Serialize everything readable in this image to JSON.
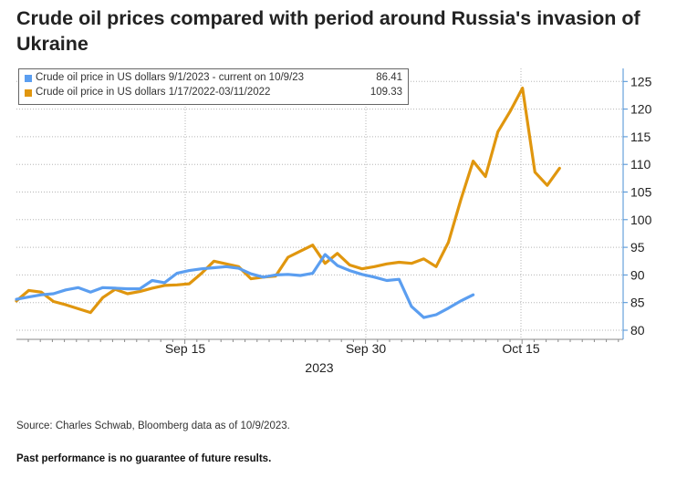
{
  "title": "Crude oil prices compared with period around Russia's invasion of Ukraine",
  "source": "Source: Charles Schwab, Bloomberg data as of 10/9/2023.",
  "disclaimer": "Past performance is no guarantee of future results.",
  "colors": {
    "series_2023": "#5b9ef0",
    "series_2022": "#e0960e",
    "axis": "#4a8fd4"
  },
  "chart_data": {
    "type": "line",
    "x_axis_label": "2023",
    "x_ticks": [
      "Sep 15",
      "Sep 30",
      "Oct 15"
    ],
    "ylim": [
      80,
      126
    ],
    "y_ticks": [
      80,
      85,
      90,
      95,
      100,
      105,
      110,
      115,
      120,
      125
    ],
    "grid": true,
    "legend_position": "top-left",
    "series": [
      {
        "name": "Crude oil price in US dollars 9/1/2023 - current on 10/9/23",
        "last_value": "86.41",
        "color": "#5b9ef0",
        "values": [
          85.6,
          86.0,
          86.4,
          86.6,
          87.3,
          87.7,
          86.9,
          87.7,
          87.6,
          87.5,
          87.5,
          89.0,
          88.6,
          90.3,
          90.8,
          91.1,
          91.3,
          91.5,
          91.2,
          90.2,
          89.6,
          90.0,
          90.1,
          89.9,
          90.3,
          93.7,
          91.7,
          90.8,
          90.1,
          89.6,
          89.0,
          89.2,
          84.3,
          82.3,
          82.8,
          84.0,
          85.3,
          86.4
        ]
      },
      {
        "name": "Crude oil price in US dollars 1/17/2022-03/11/2022",
        "last_value": "109.33",
        "color": "#e0960e",
        "values": [
          85.3,
          87.2,
          86.9,
          85.2,
          84.6,
          83.9,
          83.2,
          85.9,
          87.4,
          86.6,
          87.0,
          87.6,
          88.1,
          88.2,
          88.4,
          90.3,
          92.5,
          92.0,
          91.5,
          89.3,
          89.6,
          89.8,
          93.2,
          94.3,
          95.4,
          92.1,
          93.9,
          91.8,
          91.1,
          91.5,
          92.0,
          92.3,
          92.1,
          92.9,
          91.5,
          95.9,
          103.6,
          110.6,
          107.8,
          115.9,
          119.6,
          123.8,
          108.6,
          106.2,
          109.3
        ]
      }
    ]
  }
}
